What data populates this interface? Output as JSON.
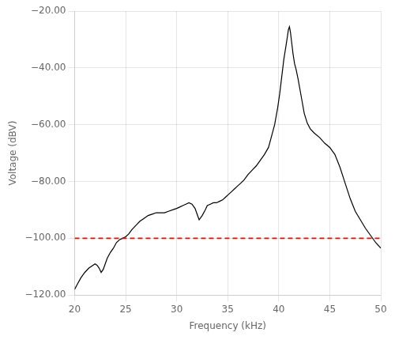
{
  "chart_data": {
    "type": "line",
    "xlabel": "Frequency (kHz)",
    "ylabel": "Voltage (dBV)",
    "x": [
      20.0,
      20.3,
      20.6,
      21.0,
      21.4,
      21.8,
      22.0,
      22.2,
      22.4,
      22.6,
      22.8,
      23.0,
      23.2,
      23.5,
      23.8,
      24.1,
      24.4,
      24.7,
      25.0,
      25.3,
      25.6,
      26.0,
      26.4,
      26.8,
      27.2,
      27.6,
      28.0,
      28.4,
      28.8,
      29.2,
      29.6,
      30.0,
      30.3,
      30.6,
      30.9,
      31.2,
      31.5,
      31.8,
      32.0,
      32.2,
      32.5,
      32.8,
      33.0,
      33.3,
      33.6,
      33.9,
      34.2,
      34.5,
      34.8,
      35.1,
      35.4,
      35.7,
      36.0,
      36.3,
      36.6,
      37.0,
      37.4,
      37.8,
      38.2,
      38.6,
      39.0,
      39.3,
      39.6,
      39.9,
      40.1,
      40.3,
      40.5,
      40.7,
      40.85,
      40.95,
      41.05,
      41.15,
      41.25,
      41.4,
      41.55,
      41.7,
      41.9,
      42.2,
      42.5,
      42.8,
      43.1,
      43.5,
      44.0,
      44.5,
      45.0,
      45.5,
      46.0,
      46.5,
      47.0,
      47.5,
      48.0,
      48.5,
      49.0,
      49.5,
      50.0
    ],
    "values": [
      -118.0,
      -116.0,
      -114.0,
      -112.0,
      -110.5,
      -109.5,
      -109.0,
      -109.5,
      -110.5,
      -112.0,
      -111.0,
      -109.0,
      -107.0,
      -105.0,
      -103.5,
      -101.5,
      -100.5,
      -100.0,
      -99.5,
      -98.5,
      -97.0,
      -95.5,
      -94.0,
      -93.0,
      -92.0,
      -91.5,
      -91.0,
      -91.0,
      -91.0,
      -90.5,
      -90.0,
      -89.5,
      -89.0,
      -88.5,
      -88.0,
      -87.5,
      -88.0,
      -89.5,
      -91.5,
      -93.5,
      -92.0,
      -90.0,
      -88.5,
      -88.0,
      -87.5,
      -87.5,
      -87.0,
      -86.5,
      -85.5,
      -84.5,
      -83.5,
      -82.5,
      -81.5,
      -80.5,
      -79.5,
      -77.5,
      -76.0,
      -74.5,
      -72.5,
      -70.5,
      -68.0,
      -64.0,
      -60.0,
      -54.0,
      -49.0,
      -43.0,
      -37.0,
      -32.5,
      -29.0,
      -26.5,
      -25.5,
      -27.5,
      -30.5,
      -35.0,
      -38.5,
      -40.5,
      -44.0,
      -50.0,
      -56.0,
      -59.5,
      -61.5,
      -63.0,
      -64.5,
      -66.5,
      -68.0,
      -70.5,
      -75.0,
      -80.5,
      -86.0,
      -90.5,
      -93.5,
      -96.5,
      -99.0,
      -101.5,
      -103.5
    ],
    "color": "#000000",
    "reference_lines": [
      {
        "y": -100,
        "color": "#ff0000",
        "line_style": "dashed"
      }
    ],
    "xlim": [
      20,
      50
    ],
    "ylim": [
      -120,
      -20
    ],
    "xticks": [
      20,
      25,
      30,
      35,
      40,
      45,
      50
    ],
    "yticks": [
      {
        "value": -120,
        "label": "−120.00"
      },
      {
        "value": -100,
        "label": "−100.00"
      },
      {
        "value": -80,
        "label": "−80.00"
      },
      {
        "value": -60,
        "label": "−60.00"
      },
      {
        "value": -40,
        "label": "−40.00"
      },
      {
        "value": -20,
        "label": "−20.00"
      }
    ],
    "grid": true
  }
}
